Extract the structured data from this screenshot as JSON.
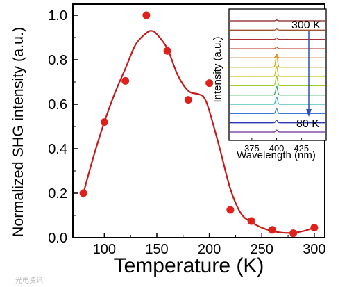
{
  "chart_data": {
    "type": "scatter",
    "xlabel": "Temperature (K)",
    "ylabel": "Normalized SHG intensity (a.u.)",
    "xlim": [
      70,
      310
    ],
    "ylim": [
      0,
      1.05
    ],
    "xticks": [
      "100",
      "150",
      "200",
      "250",
      "300"
    ],
    "yticks": [
      "0.0",
      "0.2",
      "0.4",
      "0.6",
      "0.8",
      "1.0"
    ],
    "series": [
      {
        "marker": "circle",
        "color": "#e0201b",
        "points": [
          {
            "x": 80,
            "y": 0.2
          },
          {
            "x": 100,
            "y": 0.52
          },
          {
            "x": 120,
            "y": 0.705
          },
          {
            "x": 140,
            "y": 1.0
          },
          {
            "x": 160,
            "y": 0.84
          },
          {
            "x": 180,
            "y": 0.62
          },
          {
            "x": 200,
            "y": 0.695
          },
          {
            "x": 220,
            "y": 0.125
          },
          {
            "x": 240,
            "y": 0.075
          },
          {
            "x": 260,
            "y": 0.035
          },
          {
            "x": 280,
            "y": 0.02
          },
          {
            "x": 300,
            "y": 0.045
          }
        ]
      }
    ],
    "fit_curve": {
      "color": "#c41a1a",
      "points": [
        [
          80,
          0.2
        ],
        [
          90,
          0.37
        ],
        [
          100,
          0.52
        ],
        [
          110,
          0.65
        ],
        [
          120,
          0.76
        ],
        [
          130,
          0.87
        ],
        [
          140,
          0.92
        ],
        [
          145,
          0.93
        ],
        [
          150,
          0.915
        ],
        [
          160,
          0.85
        ],
        [
          170,
          0.73
        ],
        [
          180,
          0.66
        ],
        [
          190,
          0.645
        ],
        [
          195,
          0.63
        ],
        [
          200,
          0.57
        ],
        [
          210,
          0.4
        ],
        [
          220,
          0.22
        ],
        [
          230,
          0.11
        ],
        [
          240,
          0.07
        ],
        [
          250,
          0.045
        ],
        [
          260,
          0.03
        ],
        [
          270,
          0.022
        ],
        [
          280,
          0.022
        ],
        [
          290,
          0.03
        ],
        [
          300,
          0.045
        ]
      ]
    },
    "inset": {
      "ylabel": "Intensity (a.u.)",
      "xlabel": "Wavelength (nm)",
      "xticks": [
        "375",
        "400",
        "425"
      ],
      "annotation_top": "300 K",
      "annotation_bottom": "80 K",
      "spectra": [
        {
          "color": "#8b1a1a",
          "peak": 0.06
        },
        {
          "color": "#a0522d",
          "peak": 0.08
        },
        {
          "color": "#b03030",
          "peak": 0.1
        },
        {
          "color": "#c8503a",
          "peak": 0.12
        },
        {
          "color": "#d27a2a",
          "peak": 0.25
        },
        {
          "color": "#d9a21b",
          "peak": 0.9
        },
        {
          "color": "#c8c21a",
          "peak": 0.75
        },
        {
          "color": "#9ccb2a",
          "peak": 0.7
        },
        {
          "color": "#35b55a",
          "peak": 0.65
        },
        {
          "color": "#2cb8b0",
          "peak": 0.55
        },
        {
          "color": "#3a78d8",
          "peak": 0.35
        },
        {
          "color": "#2a38b0",
          "peak": 0.2
        },
        {
          "color": "#6a2a9a",
          "peak": 0.15
        }
      ],
      "arrow_color": "#2a4fb8"
    }
  },
  "watermark": "光电资讯"
}
